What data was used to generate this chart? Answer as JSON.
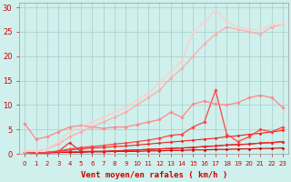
{
  "title": "",
  "xlabel": "Vent moyen/en rafales ( km/h )",
  "ylabel": "",
  "xlim": [
    -0.5,
    23.5
  ],
  "ylim": [
    0,
    31
  ],
  "background_color": "#cff0ec",
  "grid_color": "#aad4cf",
  "xlabel_color": "#cc0000",
  "series": [
    {
      "x": [
        0,
        1,
        2,
        3,
        4,
        5,
        6,
        7,
        8,
        9,
        10,
        11,
        12,
        13,
        14,
        15,
        16,
        17,
        18,
        19,
        20,
        21,
        22,
        23
      ],
      "y": [
        0.3,
        0.2,
        0.2,
        0.3,
        0.3,
        0.3,
        0.4,
        0.4,
        0.5,
        0.5,
        0.5,
        0.6,
        0.6,
        0.7,
        0.7,
        0.8,
        0.8,
        0.9,
        0.9,
        1.0,
        1.0,
        1.1,
        1.1,
        1.2
      ],
      "color": "#cc0000",
      "lw": 0.8,
      "marker": "D",
      "ms": 1.5
    },
    {
      "x": [
        0,
        1,
        2,
        3,
        4,
        5,
        6,
        7,
        8,
        9,
        10,
        11,
        12,
        13,
        14,
        15,
        16,
        17,
        18,
        19,
        20,
        21,
        22,
        23
      ],
      "y": [
        0.3,
        0.2,
        0.2,
        0.3,
        0.4,
        0.4,
        0.5,
        0.5,
        0.6,
        0.7,
        0.8,
        0.9,
        1.0,
        1.1,
        1.2,
        1.3,
        1.5,
        1.6,
        1.8,
        1.9,
        2.0,
        2.2,
        2.3,
        2.5
      ],
      "color": "#dd1111",
      "lw": 0.8,
      "marker": "D",
      "ms": 1.5
    },
    {
      "x": [
        0,
        1,
        2,
        3,
        4,
        5,
        6,
        7,
        8,
        9,
        10,
        11,
        12,
        13,
        14,
        15,
        16,
        17,
        18,
        19,
        20,
        21,
        22,
        23
      ],
      "y": [
        0.3,
        0.2,
        0.2,
        0.5,
        2.3,
        0.5,
        0.5,
        0.5,
        0.6,
        0.7,
        0.8,
        0.9,
        1.0,
        1.1,
        1.2,
        1.3,
        1.5,
        1.6,
        1.8,
        1.9,
        2.0,
        2.2,
        2.3,
        2.5
      ],
      "color": "#ee2222",
      "lw": 0.8,
      "marker": "D",
      "ms": 1.5
    },
    {
      "x": [
        0,
        1,
        2,
        3,
        4,
        5,
        6,
        7,
        8,
        9,
        10,
        11,
        12,
        13,
        14,
        15,
        16,
        17,
        18,
        19,
        20,
        21,
        22,
        23
      ],
      "y": [
        0.3,
        0.2,
        0.3,
        0.5,
        0.8,
        1.0,
        1.2,
        1.3,
        1.5,
        1.6,
        1.8,
        2.0,
        2.2,
        2.4,
        2.6,
        2.8,
        3.0,
        3.2,
        3.5,
        3.7,
        4.0,
        4.2,
        4.5,
        4.8
      ],
      "color": "#ee2222",
      "lw": 0.8,
      "marker": "D",
      "ms": 1.5
    },
    {
      "x": [
        0,
        1,
        2,
        3,
        4,
        5,
        6,
        7,
        8,
        9,
        10,
        11,
        12,
        13,
        14,
        15,
        16,
        17,
        18,
        19,
        20,
        21,
        22,
        23
      ],
      "y": [
        0.3,
        0.2,
        0.3,
        0.6,
        1.0,
        1.3,
        1.5,
        1.7,
        2.0,
        2.2,
        2.5,
        2.8,
        3.2,
        3.8,
        4.0,
        5.5,
        6.5,
        13.0,
        4.0,
        2.5,
        3.5,
        5.0,
        4.5,
        5.5
      ],
      "color": "#ff4444",
      "lw": 0.9,
      "marker": "D",
      "ms": 1.8
    },
    {
      "x": [
        0,
        1,
        2,
        3,
        4,
        5,
        6,
        7,
        8,
        9,
        10,
        11,
        12,
        13,
        14,
        15,
        16,
        17,
        18,
        19,
        20,
        21,
        22,
        23
      ],
      "y": [
        6.2,
        3.0,
        3.5,
        4.5,
        5.5,
        5.8,
        5.5,
        5.2,
        5.5,
        5.5,
        6.0,
        6.5,
        7.0,
        8.5,
        7.5,
        10.2,
        10.8,
        10.2,
        10.0,
        10.5,
        11.5,
        12.0,
        11.5,
        9.5
      ],
      "color": "#ff8888",
      "lw": 0.9,
      "marker": "D",
      "ms": 1.8
    },
    {
      "x": [
        0,
        1,
        2,
        3,
        4,
        5,
        6,
        7,
        8,
        9,
        10,
        11,
        12,
        13,
        14,
        15,
        16,
        17,
        18,
        19,
        20,
        21,
        22,
        23
      ],
      "y": [
        0.5,
        0.5,
        1.0,
        2.0,
        3.5,
        4.5,
        5.5,
        6.5,
        7.5,
        8.5,
        10.0,
        11.5,
        13.0,
        15.5,
        17.5,
        20.0,
        22.5,
        24.5,
        26.0,
        25.5,
        25.0,
        24.5,
        26.0,
        26.5
      ],
      "color": "#ffaaaa",
      "lw": 0.9,
      "marker": "D",
      "ms": 1.8
    },
    {
      "x": [
        0,
        1,
        2,
        3,
        4,
        5,
        6,
        7,
        8,
        9,
        10,
        11,
        12,
        13,
        14,
        15,
        16,
        17,
        18,
        19,
        20,
        21,
        22,
        23
      ],
      "y": [
        0.5,
        0.5,
        1.0,
        2.5,
        4.5,
        5.5,
        6.5,
        7.5,
        8.5,
        9.5,
        11.0,
        12.5,
        14.5,
        17.0,
        19.0,
        25.0,
        27.0,
        29.5,
        27.0,
        26.0,
        25.5,
        25.5,
        26.5,
        26.5
      ],
      "color": "#ffcccc",
      "lw": 0.9,
      "marker": "D",
      "ms": 1.8
    }
  ],
  "ytick_values": [
    0,
    5,
    10,
    15,
    20,
    25,
    30
  ],
  "tick_color": "#cc0000",
  "xlabel_fontsize": 6.5,
  "ytick_fontsize": 6,
  "xtick_fontsize": 5
}
